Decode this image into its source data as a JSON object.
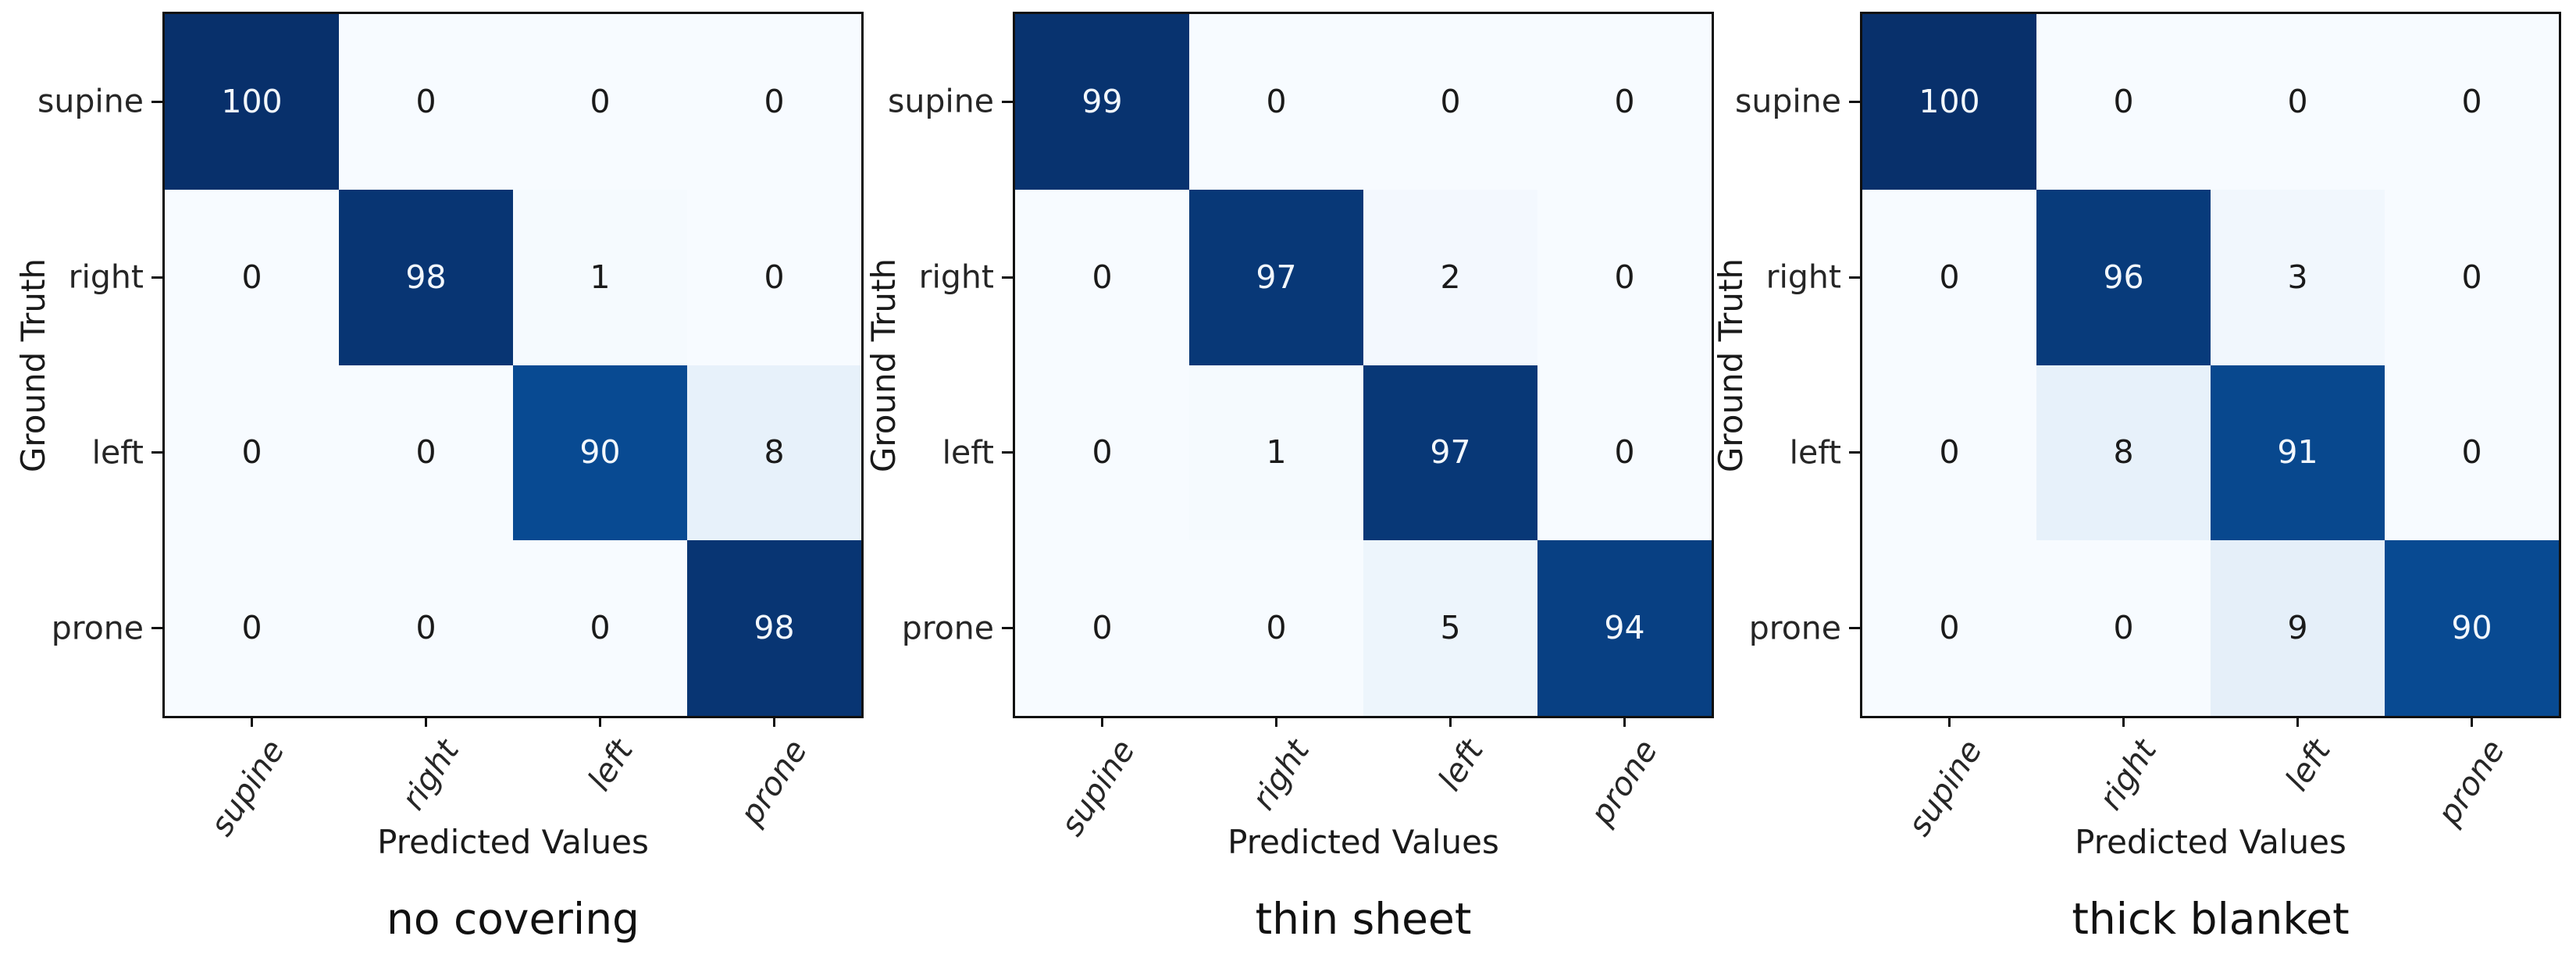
{
  "figure_type": "confusion-matrix-triptych",
  "chart_data": [
    {
      "type": "heatmap",
      "title": "no covering",
      "xlabel": "Predicted Values",
      "ylabel": "Ground Truth",
      "x_categories": [
        "supine",
        "right",
        "left",
        "prone"
      ],
      "y_categories": [
        "supine",
        "right",
        "left",
        "prone"
      ],
      "matrix": [
        [
          100,
          0,
          0,
          0
        ],
        [
          0,
          98,
          1,
          0
        ],
        [
          0,
          0,
          90,
          8
        ],
        [
          0,
          0,
          0,
          98
        ]
      ],
      "vmin": 0,
      "vmax": 100,
      "colormap": "Blues",
      "legend": "none",
      "grid": false
    },
    {
      "type": "heatmap",
      "title": "thin sheet",
      "xlabel": "Predicted Values",
      "ylabel": "Ground Truth",
      "x_categories": [
        "supine",
        "right",
        "left",
        "prone"
      ],
      "y_categories": [
        "supine",
        "right",
        "left",
        "prone"
      ],
      "matrix": [
        [
          99,
          0,
          0,
          0
        ],
        [
          0,
          97,
          2,
          0
        ],
        [
          0,
          1,
          97,
          0
        ],
        [
          0,
          0,
          5,
          94
        ]
      ],
      "vmin": 0,
      "vmax": 100,
      "colormap": "Blues",
      "legend": "none",
      "grid": false
    },
    {
      "type": "heatmap",
      "title": "thick blanket",
      "xlabel": "Predicted Values",
      "ylabel": "Ground Truth",
      "x_categories": [
        "supine",
        "right",
        "left",
        "prone"
      ],
      "y_categories": [
        "supine",
        "right",
        "left",
        "prone"
      ],
      "matrix": [
        [
          100,
          0,
          0,
          0
        ],
        [
          0,
          96,
          3,
          0
        ],
        [
          0,
          8,
          91,
          0
        ],
        [
          0,
          0,
          9,
          90
        ]
      ],
      "vmin": 0,
      "vmax": 100,
      "colormap": "Blues",
      "legend": "none",
      "grid": false
    }
  ],
  "style": {
    "background": "#ffffff",
    "axis_color": "#0f0f0f",
    "cell_text_dark": "#1a1a1a",
    "cell_text_light": "#f2f7fc",
    "colormap_stops": [
      {
        "t": 0.0,
        "color": "#f7fbff"
      },
      {
        "t": 0.125,
        "color": "#deebf7"
      },
      {
        "t": 0.25,
        "color": "#c6dbef"
      },
      {
        "t": 0.375,
        "color": "#9ecae1"
      },
      {
        "t": 0.5,
        "color": "#6baed6"
      },
      {
        "t": 0.625,
        "color": "#4292c6"
      },
      {
        "t": 0.75,
        "color": "#2171b5"
      },
      {
        "t": 0.875,
        "color": "#08519c"
      },
      {
        "t": 1.0,
        "color": "#08306b"
      }
    ]
  }
}
